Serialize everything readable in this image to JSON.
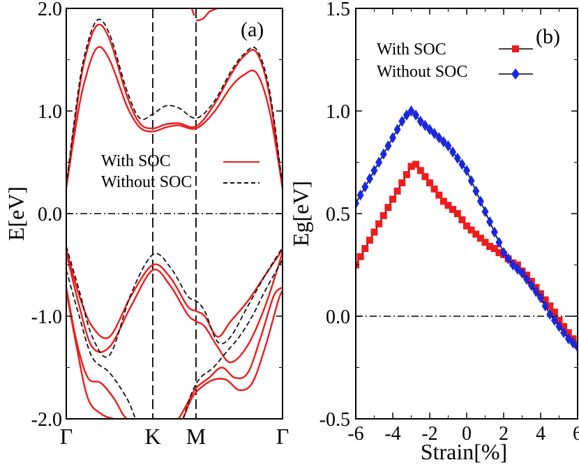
{
  "colors": {
    "soc": "#ee1c1c",
    "nosoc_dash": "#111111",
    "nosoc_marker": "#1a28e0",
    "axis": "#000000"
  },
  "chart_data": [
    {
      "panel": "a",
      "type": "line",
      "label": "(a)",
      "ylabel": "E[eV]",
      "ylim": [
        -2.0,
        2.0
      ],
      "yticks": [
        -2.0,
        -1.0,
        0.0,
        1.0,
        2.0
      ],
      "ytick_labels": [
        "-2.0",
        "-1.0",
        "0.0",
        "1.0",
        "2.0"
      ],
      "kpoints": [
        {
          "label": "Γ",
          "pos": 0
        },
        {
          "label": "K",
          "pos": 1
        },
        {
          "label": "M",
          "pos": 1.5
        },
        {
          "label": "Γ",
          "pos": 2.5
        }
      ],
      "fermi_level": 0.0,
      "legend": {
        "position": "center",
        "entries": [
          {
            "name": "With SOC",
            "style": "solid-red"
          },
          {
            "name": "Without SOC",
            "style": "dashed-black"
          }
        ]
      },
      "series": [
        {
          "name": "With SOC",
          "band": "cb1",
          "x": [
            0,
            0.1,
            0.2,
            0.35,
            0.5,
            0.7,
            0.85,
            1,
            1.15,
            1.3,
            1.5,
            1.7,
            1.9,
            2.05,
            2.2,
            2.35,
            2.5
          ],
          "y": [
            0.25,
            0.9,
            1.45,
            1.83,
            1.7,
            1.15,
            0.88,
            0.83,
            0.87,
            0.88,
            0.85,
            1.05,
            1.35,
            1.53,
            1.57,
            1.15,
            0.25
          ]
        },
        {
          "name": "With SOC",
          "band": "cb2",
          "x": [
            0,
            0.1,
            0.2,
            0.35,
            0.5,
            0.7,
            0.85,
            1,
            1.15,
            1.3,
            1.5,
            1.7,
            1.9,
            2.05,
            2.2,
            2.35,
            2.5
          ],
          "y": [
            0.25,
            0.8,
            1.25,
            1.61,
            1.5,
            1.05,
            0.84,
            0.8,
            0.84,
            0.86,
            0.83,
            0.98,
            1.23,
            1.35,
            1.37,
            1.0,
            0.25
          ]
        },
        {
          "name": "With SOC",
          "band": "cb_high",
          "x": [
            1.5,
            1.58,
            1.66,
            1.75
          ],
          "y": [
            1.88,
            1.9,
            1.97,
            2.0
          ]
        },
        {
          "name": "With SOC",
          "band": "cb_high_left",
          "x": [
            1.45,
            1.48
          ],
          "y": [
            2.0,
            1.93
          ]
        },
        {
          "name": "With SOC",
          "band": "vb1",
          "x": [
            0,
            0.15,
            0.3,
            0.5,
            0.75,
            1,
            1.2,
            1.4,
            1.5,
            1.6,
            1.75,
            1.9,
            2.1,
            2.3,
            2.5
          ],
          "y": [
            -0.35,
            -0.8,
            -1.1,
            -1.2,
            -0.8,
            -0.5,
            -0.62,
            -0.9,
            -0.95,
            -1.0,
            -1.2,
            -1.05,
            -0.85,
            -0.6,
            -0.35
          ]
        },
        {
          "name": "With SOC",
          "band": "vb2",
          "x": [
            0,
            0.15,
            0.3,
            0.5,
            0.75,
            1,
            1.2,
            1.4,
            1.5,
            1.6,
            1.75,
            1.9,
            2.1,
            2.3,
            2.5
          ],
          "y": [
            -0.38,
            -0.9,
            -1.3,
            -1.3,
            -0.9,
            -0.55,
            -0.7,
            -0.98,
            -1.05,
            -1.1,
            -1.3,
            -1.45,
            -1.28,
            -0.9,
            -0.38
          ]
        },
        {
          "name": "With SOC",
          "band": "vb3",
          "x": [
            0,
            0.12,
            0.25,
            0.4,
            0.55,
            0.65,
            0.7
          ],
          "y": [
            -0.72,
            -1.25,
            -1.6,
            -1.65,
            -1.8,
            -1.95,
            -2.0
          ]
        },
        {
          "name": "With SOC",
          "band": "vb4",
          "x": [
            0,
            0.12,
            0.25,
            0.4,
            0.55,
            0.65,
            0.7
          ],
          "y": [
            -0.75,
            -1.3,
            -1.8,
            -1.95,
            -2.0,
            -2.0,
            -2.0
          ]
        },
        {
          "name": "With SOC",
          "band": "vb5",
          "x": [
            1.3,
            1.4,
            1.5,
            1.65,
            1.8,
            1.95,
            2.1,
            2.25,
            2.4,
            2.5
          ],
          "y": [
            -2.0,
            -1.85,
            -1.7,
            -1.6,
            -1.5,
            -1.6,
            -1.55,
            -1.2,
            -0.8,
            -0.72
          ]
        },
        {
          "name": "With SOC",
          "band": "vb6",
          "x": [
            1.35,
            1.45,
            1.55,
            1.7,
            1.85,
            2.0,
            2.15,
            2.3,
            2.45,
            2.5
          ],
          "y": [
            -2.0,
            -1.8,
            -1.7,
            -1.62,
            -1.62,
            -1.72,
            -1.65,
            -1.3,
            -0.85,
            -0.75
          ]
        },
        {
          "name": "Without SOC",
          "band": "cb1",
          "x": [
            0,
            0.1,
            0.2,
            0.35,
            0.5,
            0.7,
            0.85,
            1,
            1.15,
            1.3,
            1.5,
            1.7,
            1.9,
            2.05,
            2.2,
            2.35,
            2.5
          ],
          "y": [
            0.27,
            0.95,
            1.5,
            1.88,
            1.75,
            1.2,
            0.93,
            0.97,
            1.05,
            1.03,
            0.93,
            1.08,
            1.38,
            1.55,
            1.6,
            1.2,
            0.27
          ]
        },
        {
          "name": "Without SOC",
          "band": "vb1",
          "x": [
            0,
            0.15,
            0.3,
            0.5,
            0.75,
            1,
            1.2,
            1.4,
            1.5,
            1.6,
            1.75,
            1.9,
            2.1,
            2.3,
            2.5
          ],
          "y": [
            -0.32,
            -0.75,
            -1.2,
            -1.38,
            -0.78,
            -0.4,
            -0.52,
            -0.8,
            -0.85,
            -0.95,
            -1.25,
            -1.2,
            -0.9,
            -0.6,
            -0.33
          ]
        },
        {
          "name": "Without SOC",
          "band": "vb2",
          "x": [
            0,
            0.15,
            0.3,
            0.5,
            0.7,
            0.8
          ],
          "y": [
            -0.55,
            -1.0,
            -1.4,
            -1.55,
            -1.8,
            -2.0
          ]
        },
        {
          "name": "Without SOC",
          "band": "vb3",
          "x": [
            1.35,
            1.45,
            1.55,
            1.7,
            1.85,
            2.0,
            2.15,
            2.3,
            2.5
          ],
          "y": [
            -2.0,
            -1.75,
            -1.6,
            -1.5,
            -1.35,
            -1.2,
            -1.0,
            -0.75,
            -0.45
          ]
        }
      ]
    },
    {
      "panel": "b",
      "type": "line",
      "label": "(b)",
      "xlabel": "Strain[%]",
      "ylabel": "Eg[eV]",
      "xlim": [
        -6,
        6
      ],
      "ylim": [
        -0.5,
        1.5
      ],
      "xticks": [
        -6,
        -4,
        -2,
        0,
        2,
        4,
        6
      ],
      "xtick_labels": [
        "-6",
        "-4",
        "-2",
        "0",
        "2",
        "4",
        "6"
      ],
      "yticks": [
        -0.5,
        0.0,
        0.5,
        1.0,
        1.5
      ],
      "ytick_labels": [
        "-0.5",
        "0.0",
        "0.5",
        "1.0",
        "1.5"
      ],
      "zero_line": 0.0,
      "legend": {
        "position": "top-right",
        "entries": [
          {
            "name": "With SOC",
            "marker": "square"
          },
          {
            "name": "Without SOC",
            "marker": "diamond"
          }
        ]
      },
      "series": [
        {
          "name": "With SOC",
          "marker": "square",
          "x": [
            -6.0,
            -5.75,
            -5.5,
            -5.25,
            -5.0,
            -4.75,
            -4.5,
            -4.25,
            -4.0,
            -3.75,
            -3.5,
            -3.25,
            -3.0,
            -2.75,
            -2.5,
            -2.25,
            -2.0,
            -1.75,
            -1.5,
            -1.25,
            -1.0,
            -0.75,
            -0.5,
            -0.25,
            0.0,
            0.25,
            0.5,
            0.75,
            1.0,
            1.25,
            1.5,
            1.75,
            2.0,
            2.25,
            2.5,
            2.75,
            3.0,
            3.25,
            3.5,
            3.75,
            4.0,
            4.25,
            4.5,
            4.75,
            5.0,
            5.25,
            5.5,
            5.75,
            6.0
          ],
          "y": [
            0.25,
            0.29,
            0.33,
            0.37,
            0.41,
            0.45,
            0.49,
            0.53,
            0.57,
            0.61,
            0.65,
            0.69,
            0.73,
            0.74,
            0.71,
            0.68,
            0.65,
            0.62,
            0.59,
            0.56,
            0.54,
            0.52,
            0.5,
            0.47,
            0.44,
            0.42,
            0.4,
            0.38,
            0.36,
            0.34,
            0.33,
            0.31,
            0.3,
            0.28,
            0.26,
            0.25,
            0.22,
            0.2,
            0.17,
            0.14,
            0.11,
            0.08,
            0.05,
            0.02,
            -0.02,
            -0.05,
            -0.08,
            -0.11,
            -0.14
          ]
        },
        {
          "name": "Without SOC",
          "marker": "diamond",
          "x": [
            -6.0,
            -5.75,
            -5.5,
            -5.25,
            -5.0,
            -4.75,
            -4.5,
            -4.25,
            -4.0,
            -3.75,
            -3.5,
            -3.25,
            -3.0,
            -2.75,
            -2.5,
            -2.25,
            -2.0,
            -1.75,
            -1.5,
            -1.25,
            -1.0,
            -0.75,
            -0.5,
            -0.25,
            0.0,
            0.25,
            0.5,
            0.75,
            1.0,
            1.25,
            1.5,
            1.75,
            2.0,
            2.25,
            2.5,
            2.75,
            3.0,
            3.25,
            3.5,
            3.75,
            4.0,
            4.25,
            4.5,
            4.75,
            5.0,
            5.25,
            5.5,
            5.75,
            6.0
          ],
          "y": [
            0.55,
            0.59,
            0.63,
            0.67,
            0.71,
            0.75,
            0.79,
            0.83,
            0.87,
            0.91,
            0.95,
            0.98,
            1.0,
            0.98,
            0.95,
            0.93,
            0.91,
            0.89,
            0.87,
            0.85,
            0.83,
            0.8,
            0.77,
            0.74,
            0.71,
            0.66,
            0.61,
            0.56,
            0.51,
            0.46,
            0.41,
            0.36,
            0.31,
            0.28,
            0.25,
            0.23,
            0.21,
            0.18,
            0.15,
            0.12,
            0.09,
            0.05,
            0.01,
            -0.02,
            -0.05,
            -0.08,
            -0.11,
            -0.13,
            -0.15
          ]
        }
      ]
    }
  ]
}
